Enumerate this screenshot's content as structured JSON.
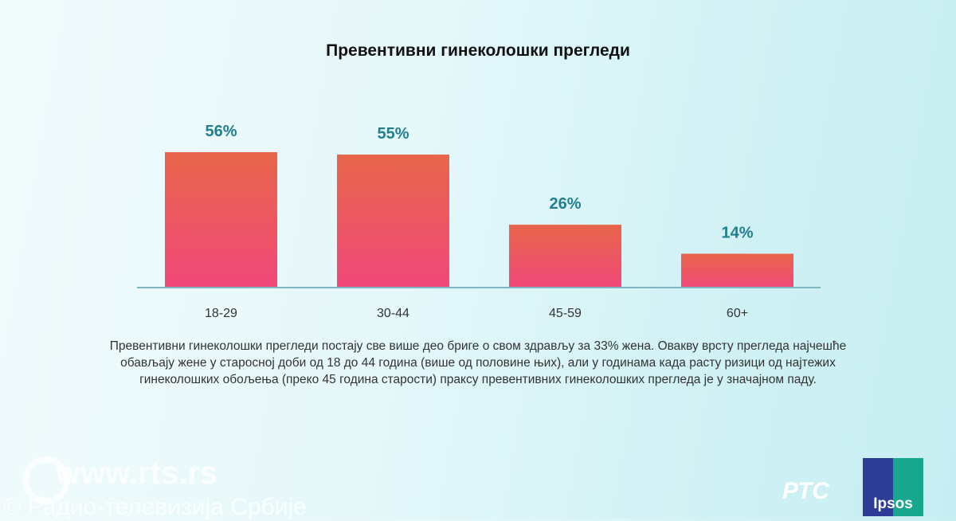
{
  "chart_data": {
    "type": "bar",
    "title": "Превентивни гинеколошки прегледи",
    "categories": [
      "18-29",
      "30-44",
      "45-59",
      "60+"
    ],
    "values": [
      56,
      55,
      26,
      14
    ],
    "value_labels": [
      "56%",
      "55%",
      "26%",
      "14%"
    ],
    "xlabel": "",
    "ylabel": "",
    "ylim": [
      0,
      60
    ],
    "grid": false,
    "bar_color_top": "#e8664a",
    "bar_color_bottom": "#f0487a",
    "label_color": "#1f7f8c"
  },
  "caption": "Превентивни гинеколошки прегледи постају све више део бриге о свом здрављу за 33% жена. Овакву врсту прегледа најчешће обављају жене у старосној доби од 18 до 44 година (више од половине њих), али у годинама када расту ризици од најтежих гинеколошких обољења (преко 45 година старости) праксу превентивних гинеколошких прегледа је у значајном паду.",
  "watermark": {
    "site": "www.rts.rs",
    "copyright": "© Радио-телевизија Србије"
  },
  "logos": {
    "rts": "РТС",
    "ipsos": "Ipsos"
  }
}
